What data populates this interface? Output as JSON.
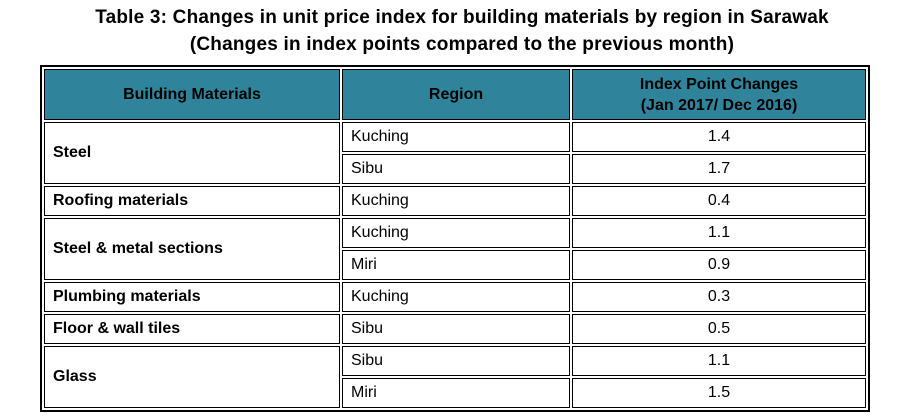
{
  "title": {
    "line1": "Table 3: Changes in unit price index for building materials by region in Sarawak",
    "line2": "(Changes in index points compared to the previous month)"
  },
  "colors": {
    "header_background": "#2F849B",
    "border": "#000000",
    "text": "#000000",
    "page_background": "#ffffff"
  },
  "table": {
    "headers": {
      "building_materials": "Building Materials",
      "region": "Region",
      "index_changes_line1": "Index Point Changes",
      "index_changes_line2": "(Jan 2017/ Dec 2016)"
    },
    "groups": [
      {
        "material": "Steel",
        "rows": [
          {
            "region": "Kuching",
            "value": "1.4"
          },
          {
            "region": "Sibu",
            "value": "1.7"
          }
        ]
      },
      {
        "material": "Roofing materials",
        "rows": [
          {
            "region": "Kuching",
            "value": "0.4"
          }
        ]
      },
      {
        "material": "Steel & metal sections",
        "rows": [
          {
            "region": "Kuching",
            "value": "1.1"
          },
          {
            "region": "Miri",
            "value": "0.9"
          }
        ]
      },
      {
        "material": "Plumbing materials",
        "rows": [
          {
            "region": "Kuching",
            "value": "0.3"
          }
        ]
      },
      {
        "material": "Floor & wall tiles",
        "rows": [
          {
            "region": "Sibu",
            "value": "0.5"
          }
        ]
      },
      {
        "material": "Glass",
        "rows": [
          {
            "region": "Sibu",
            "value": "1.1"
          },
          {
            "region": "Miri",
            "value": "1.5"
          }
        ]
      }
    ]
  },
  "chart_data": {
    "type": "table",
    "title": "Table 3: Changes in unit price index for building materials by region in Sarawak (Changes in index points compared to the previous month)",
    "columns": [
      "Building Materials",
      "Region",
      "Index Point Changes (Jan 2017/ Dec 2016)"
    ],
    "rows": [
      [
        "Steel",
        "Kuching",
        1.4
      ],
      [
        "Steel",
        "Sibu",
        1.7
      ],
      [
        "Roofing materials",
        "Kuching",
        0.4
      ],
      [
        "Steel & metal sections",
        "Kuching",
        1.1
      ],
      [
        "Steel & metal sections",
        "Miri",
        0.9
      ],
      [
        "Plumbing materials",
        "Kuching",
        0.3
      ],
      [
        "Floor & wall tiles",
        "Sibu",
        0.5
      ],
      [
        "Glass",
        "Sibu",
        1.1
      ],
      [
        "Glass",
        "Miri",
        1.5
      ]
    ]
  }
}
